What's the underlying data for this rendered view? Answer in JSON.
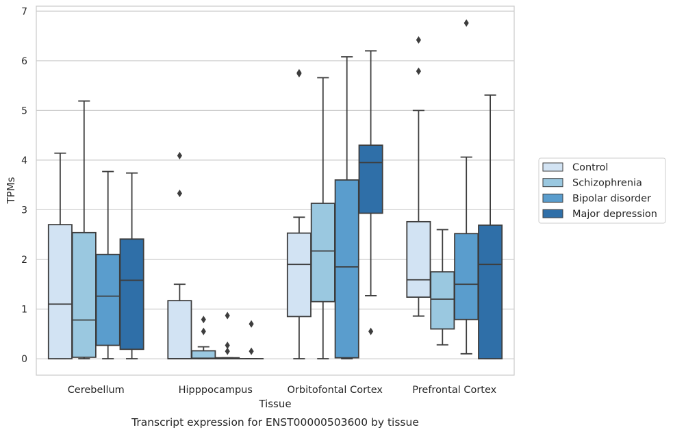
{
  "chart_data": {
    "type": "boxplot",
    "title": "",
    "caption": "Transcript expression for ENST00000503600 by tissue",
    "xlabel": "Tissue",
    "ylabel": "TPMs",
    "ylim": [
      -0.33,
      7.1
    ],
    "yticks": [
      0,
      1,
      2,
      3,
      4,
      5,
      6,
      7
    ],
    "grid": "horizontal",
    "legend_position": "right",
    "categories": [
      "Cerebellum",
      "Hipppocampus",
      "Orbitofontal Cortex",
      "Prefrontal Cortex"
    ],
    "series": [
      {
        "name": "Control",
        "color": "#d2e3f3",
        "boxes": [
          {
            "whislo": 0,
            "q1": 0,
            "med": 1.1,
            "q3": 2.7,
            "whishi": 4.14,
            "fliers": []
          },
          {
            "whislo": 0,
            "q1": 0,
            "med": 0,
            "q3": 1.17,
            "whishi": 1.5,
            "fliers": [
              3.33,
              4.09
            ]
          },
          {
            "whislo": 0,
            "q1": 0.85,
            "med": 1.9,
            "q3": 2.53,
            "whishi": 2.85,
            "fliers": [
              5.74,
              5.76
            ]
          },
          {
            "whislo": 0.86,
            "q1": 1.24,
            "med": 1.59,
            "q3": 2.76,
            "whishi": 5.0,
            "fliers": [
              5.79,
              6.42
            ]
          }
        ]
      },
      {
        "name": "Schizophrenia",
        "color": "#9ac8e0",
        "boxes": [
          {
            "whislo": 0,
            "q1": 0.03,
            "med": 0.78,
            "q3": 2.54,
            "whishi": 5.19,
            "fliers": []
          },
          {
            "whislo": 0,
            "q1": 0,
            "med": 0.01,
            "q3": 0.16,
            "whishi": 0.24,
            "fliers": [
              0.55,
              0.79
            ]
          },
          {
            "whislo": 0,
            "q1": 1.15,
            "med": 2.17,
            "q3": 3.13,
            "whishi": 5.66,
            "fliers": []
          },
          {
            "whislo": 0.28,
            "q1": 0.6,
            "med": 1.2,
            "q3": 1.75,
            "whishi": 2.6,
            "fliers": []
          }
        ]
      },
      {
        "name": "Bipolar disorder",
        "color": "#5a9dcd",
        "boxes": [
          {
            "whislo": 0,
            "q1": 0.27,
            "med": 1.26,
            "q3": 2.1,
            "whishi": 3.77,
            "fliers": []
          },
          {
            "whislo": 0,
            "q1": 0,
            "med": 0,
            "q3": 0.02,
            "whishi": 0.02,
            "fliers": [
              0.15,
              0.27,
              0.87
            ]
          },
          {
            "whislo": 0,
            "q1": 0.02,
            "med": 1.85,
            "q3": 3.6,
            "whishi": 6.08,
            "fliers": []
          },
          {
            "whislo": 0.1,
            "q1": 0.79,
            "med": 1.5,
            "q3": 2.52,
            "whishi": 4.06,
            "fliers": [
              6.76
            ]
          }
        ]
      },
      {
        "name": "Major depression",
        "color": "#2f6fa8",
        "boxes": [
          {
            "whislo": 0,
            "q1": 0.19,
            "med": 1.58,
            "q3": 2.41,
            "whishi": 3.74,
            "fliers": []
          },
          {
            "whislo": 0,
            "q1": 0,
            "med": 0,
            "q3": 0,
            "whishi": 0,
            "fliers": [
              0.15,
              0.7
            ]
          },
          {
            "whislo": 1.27,
            "q1": 2.93,
            "med": 3.95,
            "q3": 4.3,
            "whishi": 6.2,
            "fliers": [
              0.55
            ]
          },
          {
            "whislo": 0,
            "q1": 0,
            "med": 1.9,
            "q3": 2.69,
            "whishi": 5.31,
            "fliers": []
          }
        ]
      }
    ]
  }
}
